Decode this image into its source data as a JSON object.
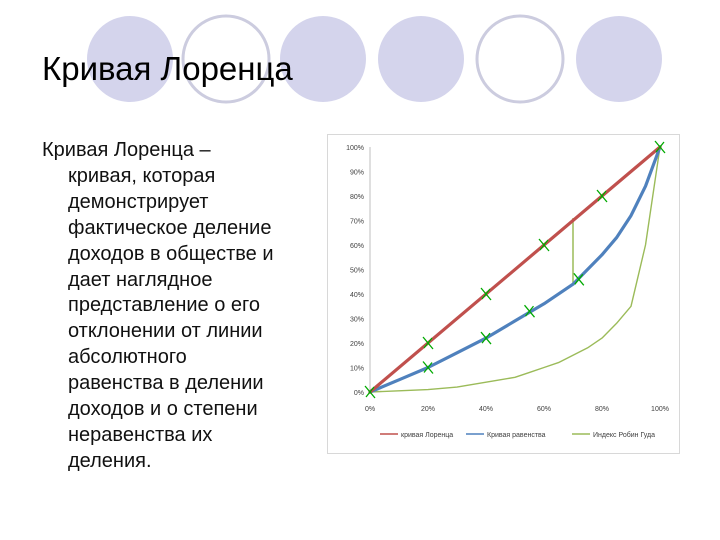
{
  "slide": {
    "title": "Кривая Лоренца",
    "text_lines": [
      "Кривая Лоренца –",
      "кривая, которая",
      "демонстрирует",
      "фактическое деление",
      "доходов в обществе и",
      "дает наглядное",
      "представление о его",
      "отклонении от линии",
      "абсолютного",
      "равенства в делении",
      "доходов и о степени",
      "неравенства их",
      "деления."
    ],
    "colors": {
      "circle_fill": "#d4d4ec",
      "circle_ring": "#ccccdf"
    }
  },
  "chart_data": {
    "type": "line",
    "y_ticks": [
      "100%",
      "90%",
      "80%",
      "70%",
      "60%",
      "50%",
      "40%",
      "30%",
      "20%",
      "10%",
      "0%"
    ],
    "x_ticks": [
      "0%",
      "20%",
      "40%",
      "60%",
      "80%",
      "100%"
    ],
    "xlim": [
      0,
      100
    ],
    "ylim": [
      0,
      100
    ],
    "grid": false,
    "legend_position": "bottom",
    "series": [
      {
        "name": "кривая Лоренца",
        "color": "#c0504d",
        "x": [
          0,
          100
        ],
        "y": [
          0,
          100
        ]
      },
      {
        "name": "Кривая равенства",
        "color": "#4f81bd",
        "x": [
          0,
          10,
          20,
          30,
          40,
          50,
          60,
          70,
          80,
          85,
          90,
          95,
          100
        ],
        "y": [
          0,
          5,
          10,
          16,
          22,
          29,
          36,
          44,
          56,
          63,
          72,
          84,
          100
        ]
      },
      {
        "name": "Индекс Робин Гуда",
        "color": "#9bbb59",
        "x": [
          0,
          10,
          20,
          30,
          40,
          50,
          55,
          60,
          65,
          70,
          75,
          80,
          85,
          90,
          92,
          95,
          100
        ],
        "y": [
          0,
          0.5,
          1,
          2,
          4,
          6,
          8,
          10,
          12,
          15,
          18,
          22,
          28,
          35,
          45,
          60,
          100
        ]
      }
    ],
    "annotations": {
      "marker_color": "#00aa00",
      "gap_line": {
        "x": 70,
        "y_from": 44,
        "y_to": 71,
        "color": "#9bbb59"
      },
      "marks": [
        [
          0,
          0
        ],
        [
          20,
          20
        ],
        [
          40,
          40
        ],
        [
          60,
          60
        ],
        [
          80,
          80
        ],
        [
          100,
          100
        ],
        [
          20,
          10
        ],
        [
          40,
          22
        ],
        [
          55,
          33
        ],
        [
          72,
          46
        ]
      ]
    }
  }
}
